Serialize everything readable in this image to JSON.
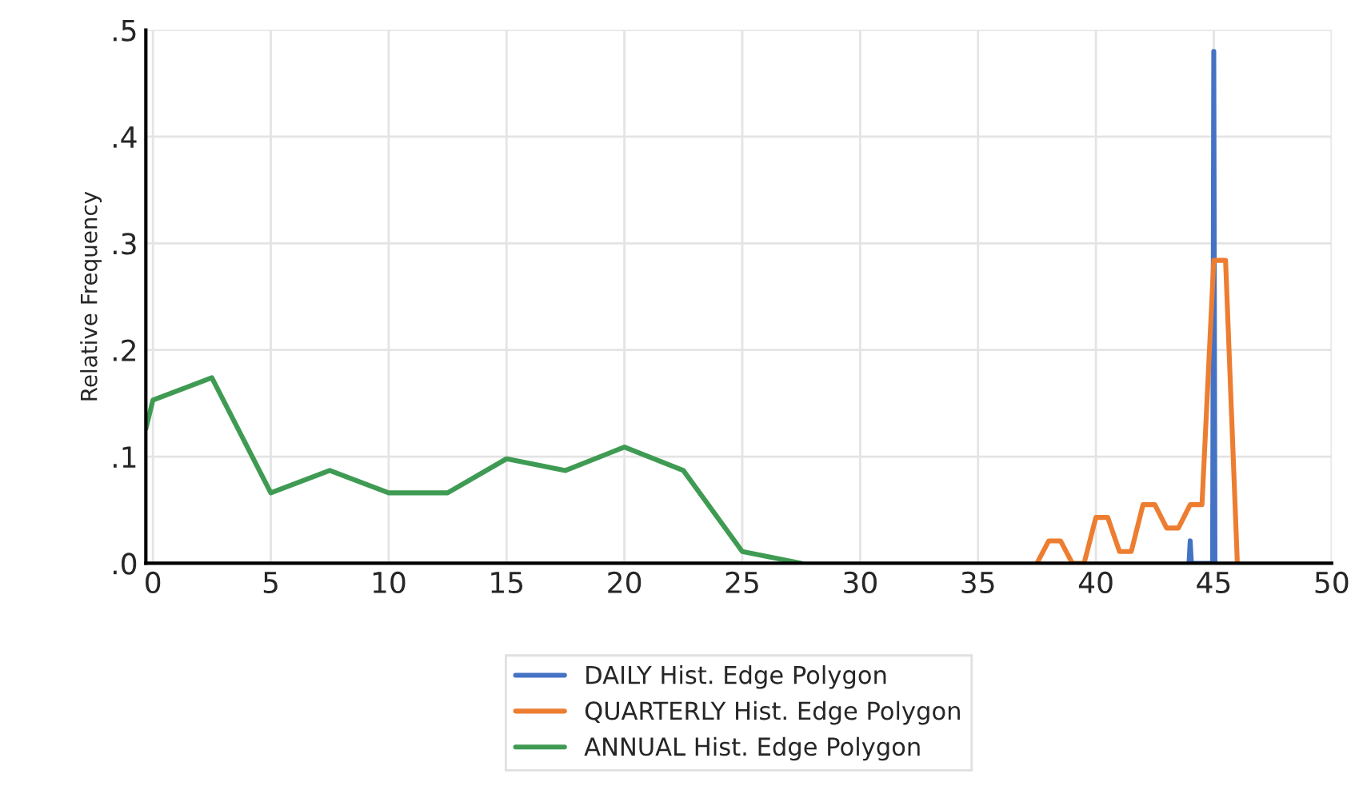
{
  "chart_data": {
    "type": "line",
    "ylabel": "Relative Frequency",
    "xlim": [
      -0.3,
      50
    ],
    "xticks": [
      0,
      5,
      10,
      15,
      20,
      25,
      30,
      35,
      40,
      45,
      50
    ],
    "ylim": [
      0,
      0.5
    ],
    "yticks": [
      {
        "value": 0,
        "label": ".0"
      },
      {
        "value": 0.1,
        "label": ".1"
      },
      {
        "value": 0.2,
        "label": ".2"
      },
      {
        "value": 0.3,
        "label": ".3"
      },
      {
        "value": 0.4,
        "label": ".4"
      },
      {
        "value": 0.5,
        "label": ".5"
      }
    ],
    "grid": true,
    "legend": "bottom",
    "marker": "none",
    "line_style": "solid",
    "series": [
      {
        "name": "DAILY Hist. Edge Polygon",
        "color": "#4472c4",
        "x": [
          43.95,
          44,
          44.05,
          44.95,
          45,
          45.05
        ],
        "values": [
          0,
          0.021,
          0,
          0,
          0.48,
          0
        ]
      },
      {
        "name": "QUARTERLY Hist. Edge Polygon",
        "color": "#ed7d31",
        "x": [
          37.5,
          38,
          38.5,
          39,
          39.5,
          40,
          40.5,
          41,
          41.5,
          42,
          42.5,
          43,
          43.5,
          44,
          44.5,
          45,
          45.5,
          46
        ],
        "values": [
          0,
          0.021,
          0.021,
          0,
          0,
          0.043,
          0.043,
          0.011,
          0.011,
          0.055,
          0.055,
          0.033,
          0.033,
          0.055,
          0.055,
          0.284,
          0.284,
          0
        ]
      },
      {
        "name": "ANNUAL Hist. Edge Polygon",
        "color": "#3f9b53",
        "x": [
          -0.3,
          0,
          2.5,
          5,
          7.5,
          10,
          12.5,
          15,
          17.5,
          20,
          22.5,
          25,
          27.5
        ],
        "values": [
          0.126,
          0.153,
          0.174,
          0.066,
          0.087,
          0.066,
          0.066,
          0.098,
          0.087,
          0.109,
          0.087,
          0.011,
          0
        ]
      }
    ]
  }
}
